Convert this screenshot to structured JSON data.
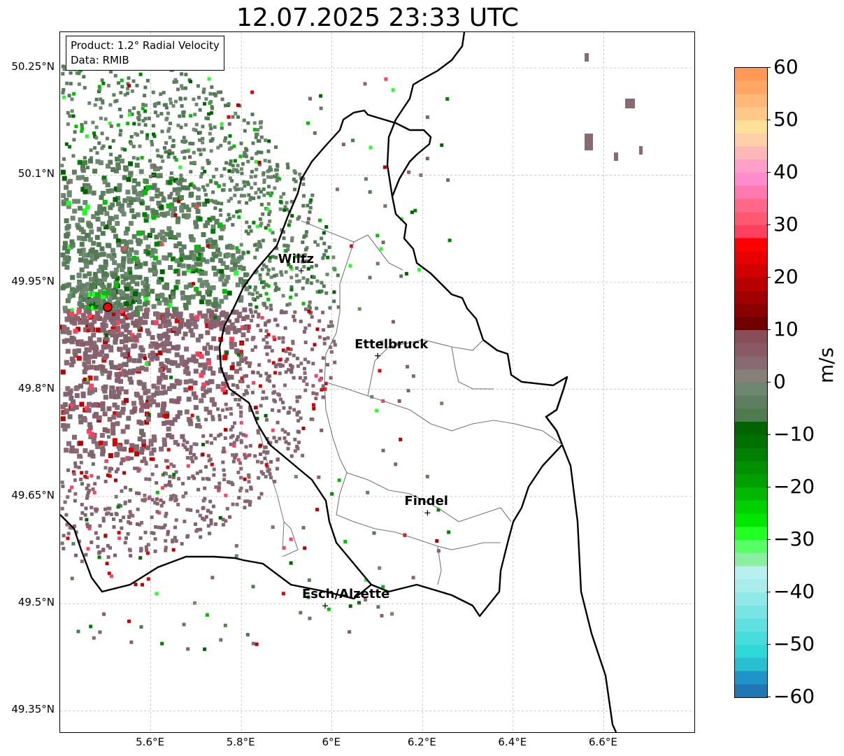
{
  "title": "12.07.2025 23:33 UTC",
  "info": {
    "product": "Product: 1.2° Radial Velocity",
    "data": "Data: RMIB"
  },
  "map": {
    "lon_range": [
      5.4,
      6.8
    ],
    "lat_range": [
      49.32,
      50.3
    ],
    "lat_ticks": [
      {
        "value": 50.25,
        "label": "50.25°N"
      },
      {
        "value": 50.1,
        "label": "50.1°N"
      },
      {
        "value": 49.95,
        "label": "49.95°N"
      },
      {
        "value": 49.8,
        "label": "49.8°N"
      },
      {
        "value": 49.65,
        "label": "49.65°N"
      },
      {
        "value": 49.5,
        "label": "49.5°N"
      },
      {
        "value": 49.35,
        "label": "49.35°N"
      }
    ],
    "lon_ticks": [
      {
        "value": 5.6,
        "label": "5.6°E"
      },
      {
        "value": 5.8,
        "label": "5.8°E"
      },
      {
        "value": 6.0,
        "label": "6°E"
      },
      {
        "value": 6.2,
        "label": "6.2°E"
      },
      {
        "value": 6.4,
        "label": "6.4°E"
      },
      {
        "value": 6.6,
        "label": "6.6°E"
      }
    ],
    "radar_site": {
      "lon": 5.505,
      "lat": 49.915
    },
    "cities": [
      {
        "name": "Wiltz",
        "lon": 5.932,
        "lat": 49.966
      },
      {
        "name": "Ettelbruck",
        "lon": 6.101,
        "lat": 49.847
      },
      {
        "name": "Findel",
        "lon": 6.211,
        "lat": 49.627
      },
      {
        "name": "Esch/Alzette",
        "lon": 5.985,
        "lat": 49.497
      }
    ]
  },
  "colorbar": {
    "unit": "m/s",
    "min": -60,
    "max": 60,
    "ticks": [
      60,
      50,
      40,
      30,
      20,
      10,
      0,
      -10,
      -20,
      -30,
      -40,
      -50,
      -60
    ],
    "tick_labels": [
      "60",
      "50",
      "40",
      "30",
      "20",
      "10",
      "0",
      "−10",
      "−20",
      "−30",
      "−40",
      "−50",
      "−60"
    ],
    "colors_top_to_bottom": [
      "#ff9955",
      "#ffa866",
      "#ffb877",
      "#ffc888",
      "#ffe099",
      "#ffd0a8",
      "#ffb8b8",
      "#ffa0c8",
      "#ff8ccc",
      "#ff78b0",
      "#ff6888",
      "#ff5870",
      "#ff4060",
      "#ff0000",
      "#e80000",
      "#d00000",
      "#b80000",
      "#a00000",
      "#880000",
      "#700000",
      "#884e58",
      "#8a5a64",
      "#8a6a72",
      "#868078",
      "#6e8870",
      "#5e7e60",
      "#507a50",
      "#006400",
      "#007000",
      "#008000",
      "#009000",
      "#00a000",
      "#00b800",
      "#00d000",
      "#00e800",
      "#22ff22",
      "#55ff66",
      "#88f0a0",
      "#b8f0f0",
      "#a8ecec",
      "#90e8e8",
      "#78e4e4",
      "#60e0e0",
      "#48dcdc",
      "#30d8d8",
      "#28c0d0",
      "#2094c8",
      "#1f77b4"
    ]
  }
}
